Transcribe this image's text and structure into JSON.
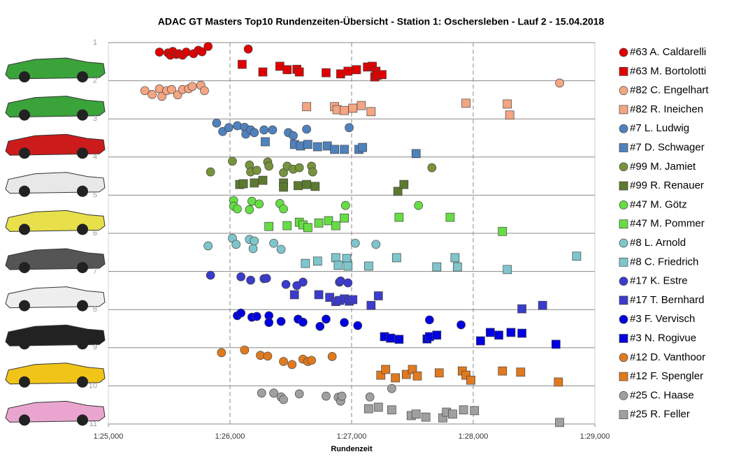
{
  "chart_data": {
    "type": "scatter",
    "title": "ADAC  GT Masters  Top10  Rundenzeiten-Übersicht  - Station  1: Oschersleben  - Lauf  2 - 15.04.2018",
    "x_label": "Rundenzeit",
    "xlim": [
      85,
      89
    ],
    "xticks": [
      {
        "value": 85,
        "label": "1:25,000"
      },
      {
        "value": 86,
        "label": "1:26,000"
      },
      {
        "value": 87,
        "label": "1:27,000"
      },
      {
        "value": 88,
        "label": "1:28,000"
      },
      {
        "value": 89,
        "label": "1:29,000"
      }
    ],
    "ylim": [
      1,
      11
    ],
    "y_inverted": true,
    "yticks": [
      1,
      2,
      3,
      4,
      5,
      6,
      7,
      8,
      9,
      10,
      11
    ],
    "grid": true,
    "legend": "right",
    "series": [
      {
        "name": "#63 A. Caldarelli",
        "color": "#e00000",
        "marker": "circle",
        "x": [
          85.42,
          85.49,
          85.51,
          85.53,
          85.56,
          85.58,
          85.61,
          85.64,
          85.7,
          85.74,
          85.77,
          85.82,
          86.15
        ],
        "values": [
          1.25,
          1.27,
          1.33,
          1.23,
          1.31,
          1.29,
          1.33,
          1.25,
          1.29,
          1.2,
          1.24,
          1.1,
          1.17
        ]
      },
      {
        "name": "#63 M. Bortolotti",
        "color": "#e00000",
        "marker": "square",
        "x": [
          86.1,
          86.27,
          86.41,
          86.47,
          86.55,
          86.57,
          86.79,
          86.91,
          86.97,
          87.04,
          87.13,
          87.17,
          87.19,
          87.2,
          87.21,
          87.25
        ],
        "values": [
          1.57,
          1.77,
          1.62,
          1.71,
          1.7,
          1.77,
          1.79,
          1.82,
          1.75,
          1.71,
          1.64,
          1.62,
          1.9,
          1.75,
          1.86,
          1.84
        ]
      },
      {
        "name": "#82 C. Engelhart",
        "color": "#f4a582",
        "marker": "circle",
        "x": [
          85.3,
          85.36,
          85.42,
          85.44,
          85.48,
          85.52,
          85.57,
          85.61,
          85.66,
          85.69,
          85.76,
          85.79,
          88.71
        ],
        "values": [
          2.26,
          2.36,
          2.21,
          2.41,
          2.26,
          2.23,
          2.37,
          2.23,
          2.21,
          2.15,
          2.12,
          2.26,
          2.06
        ]
      },
      {
        "name": "#82 R. Ineichen",
        "color": "#f4a582",
        "marker": "square",
        "x": [
          86.63,
          86.86,
          86.88,
          86.94,
          87.01,
          87.08,
          87.16,
          87.94,
          88.28,
          88.3
        ],
        "values": [
          2.68,
          2.68,
          2.76,
          2.78,
          2.72,
          2.65,
          2.81,
          2.59,
          2.61,
          2.9
        ]
      },
      {
        "name": "#7 L. Ludwig",
        "color": "#4f81bd",
        "marker": "circle",
        "x": [
          85.89,
          85.94,
          85.99,
          86.06,
          86.12,
          86.13,
          86.17,
          86.2,
          86.28,
          86.35,
          86.48,
          86.52,
          86.63,
          86.98
        ],
        "values": [
          3.11,
          3.33,
          3.23,
          3.18,
          3.22,
          3.4,
          3.29,
          3.36,
          3.29,
          3.29,
          3.36,
          3.44,
          3.27,
          3.23
        ]
      },
      {
        "name": "#7 D. Schwager",
        "color": "#4f81bd",
        "marker": "square",
        "x": [
          86.29,
          86.53,
          86.58,
          86.64,
          86.72,
          86.8,
          86.86,
          86.94,
          87.06,
          87.09,
          87.53
        ],
        "values": [
          3.6,
          3.67,
          3.71,
          3.67,
          3.73,
          3.71,
          3.8,
          3.8,
          3.8,
          3.75,
          3.91
        ]
      },
      {
        "name": "#99 M. Jamiet",
        "color": "#77933c",
        "marker": "circle",
        "x": [
          85.84,
          86.02,
          86.16,
          86.17,
          86.22,
          86.31,
          86.32,
          86.44,
          86.47,
          86.52,
          86.57,
          86.67,
          86.68,
          87.66
        ],
        "values": [
          4.39,
          4.11,
          4.21,
          4.39,
          4.35,
          4.13,
          4.24,
          4.41,
          4.24,
          4.32,
          4.28,
          4.24,
          4.39,
          4.28
        ]
      },
      {
        "name": "#99 R. Renauer",
        "color": "#5c7a2e",
        "marker": "square",
        "x": [
          86.08,
          86.11,
          86.2,
          86.27,
          86.44,
          86.44,
          86.56,
          86.63,
          86.7,
          87.38,
          87.43
        ],
        "values": [
          4.72,
          4.7,
          4.68,
          4.61,
          4.68,
          4.79,
          4.75,
          4.72,
          4.77,
          4.9,
          4.72
        ]
      },
      {
        "name": "#47 M. Götz",
        "color": "#66dd44",
        "marker": "circle",
        "x": [
          86.03,
          86.03,
          86.06,
          86.16,
          86.18,
          86.24,
          86.41,
          86.44,
          86.95,
          87.55
        ],
        "values": [
          5.14,
          5.29,
          5.36,
          5.38,
          5.16,
          5.23,
          5.22,
          5.36,
          5.27,
          5.27
        ]
      },
      {
        "name": "#47 M. Pommer",
        "color": "#66dd44",
        "marker": "square",
        "x": [
          86.32,
          86.47,
          86.57,
          86.6,
          86.64,
          86.73,
          86.81,
          86.87,
          86.94,
          87.39,
          87.81,
          88.24
        ],
        "values": [
          5.82,
          5.8,
          5.71,
          5.78,
          5.85,
          5.73,
          5.67,
          5.8,
          5.6,
          5.58,
          5.58,
          5.95
        ]
      },
      {
        "name": "#8 L. Arnold",
        "color": "#7fc5cc",
        "marker": "circle",
        "x": [
          85.82,
          86.02,
          86.05,
          86.16,
          86.19,
          86.2,
          86.36,
          86.42,
          87.03,
          87.2
        ],
        "values": [
          6.33,
          6.13,
          6.29,
          6.16,
          6.4,
          6.2,
          6.26,
          6.42,
          6.26,
          6.29
        ]
      },
      {
        "name": "#8 C. Friedrich",
        "color": "#7fc5cc",
        "marker": "square",
        "x": [
          86.62,
          86.72,
          86.87,
          86.89,
          86.96,
          86.97,
          87.14,
          87.37,
          87.7,
          87.85,
          87.87,
          88.28,
          88.85
        ],
        "values": [
          6.79,
          6.73,
          6.64,
          6.84,
          6.66,
          6.86,
          6.86,
          6.64,
          6.88,
          6.64,
          6.88,
          6.95,
          6.6
        ]
      },
      {
        "name": "#17 K. Estre",
        "color": "#3b3bcc",
        "marker": "circle",
        "x": [
          85.84,
          86.09,
          86.17,
          86.28,
          86.3,
          86.46,
          86.55,
          86.6,
          86.9,
          86.91,
          86.97
        ],
        "values": [
          7.1,
          7.14,
          7.23,
          7.19,
          7.18,
          7.34,
          7.37,
          7.28,
          7.28,
          7.25,
          7.3
        ]
      },
      {
        "name": "#17 T. Bernhard",
        "color": "#3b3bcc",
        "marker": "square",
        "x": [
          86.53,
          86.73,
          86.82,
          86.87,
          86.9,
          86.94,
          86.98,
          87.01,
          87.16,
          87.22,
          88.4,
          88.57
        ],
        "values": [
          7.61,
          7.61,
          7.68,
          7.79,
          7.76,
          7.72,
          7.78,
          7.74,
          7.89,
          7.64,
          7.98,
          7.89
        ]
      },
      {
        "name": "#3 F. Vervisch",
        "color": "#0000e0",
        "marker": "circle",
        "x": [
          86.06,
          86.09,
          86.18,
          86.22,
          86.32,
          86.32,
          86.42,
          86.56,
          86.6,
          86.74,
          86.79,
          86.94,
          87.05,
          87.64,
          87.9
        ],
        "values": [
          8.16,
          8.09,
          8.2,
          8.18,
          8.16,
          8.34,
          8.31,
          8.25,
          8.33,
          8.44,
          8.25,
          8.34,
          8.42,
          8.27,
          8.4
        ]
      },
      {
        "name": "#3 N. Rogivue",
        "color": "#0000e0",
        "marker": "square",
        "x": [
          87.27,
          87.32,
          87.39,
          87.62,
          87.64,
          87.7,
          88.06,
          88.14,
          88.21,
          88.31,
          88.4,
          88.68
        ],
        "values": [
          8.71,
          8.75,
          8.78,
          8.77,
          8.71,
          8.67,
          8.82,
          8.6,
          8.67,
          8.6,
          8.62,
          8.91
        ]
      },
      {
        "name": "#12 D. Vanthoor",
        "color": "#e07a1f",
        "marker": "circle",
        "x": [
          85.93,
          86.12,
          86.25,
          86.31,
          86.44,
          86.51,
          86.6,
          86.64,
          86.67,
          86.84
        ],
        "values": [
          9.13,
          9.06,
          9.2,
          9.22,
          9.36,
          9.44,
          9.3,
          9.36,
          9.33,
          9.23
        ]
      },
      {
        "name": "#12 F. Spengler",
        "color": "#e07a1f",
        "marker": "square",
        "x": [
          87.24,
          87.28,
          87.36,
          87.45,
          87.5,
          87.54,
          87.72,
          87.91,
          87.94,
          87.98,
          88.24,
          88.39,
          88.7
        ],
        "values": [
          9.72,
          9.57,
          9.79,
          9.7,
          9.57,
          9.74,
          9.66,
          9.61,
          9.72,
          9.85,
          9.61,
          9.64,
          9.9
        ]
      },
      {
        "name": "#25 C. Haase",
        "color": "#a0a0a0",
        "marker": "circle",
        "x": [
          86.26,
          86.36,
          86.42,
          86.44,
          86.57,
          86.79,
          86.89,
          86.91,
          86.92,
          87.15,
          87.33
        ],
        "values": [
          10.19,
          10.19,
          10.29,
          10.36,
          10.21,
          10.27,
          10.3,
          10.4,
          10.27,
          10.29,
          10.07
        ]
      },
      {
        "name": "#25 R. Feller",
        "color": "#a0a0a0",
        "marker": "square",
        "x": [
          87.14,
          87.22,
          87.33,
          87.49,
          87.53,
          87.61,
          87.75,
          87.78,
          87.83,
          87.92,
          88.01,
          88.71
        ],
        "values": [
          10.6,
          10.56,
          10.63,
          10.78,
          10.74,
          10.82,
          10.84,
          10.69,
          10.74,
          10.63,
          10.65,
          10.96
        ]
      }
    ]
  }
}
